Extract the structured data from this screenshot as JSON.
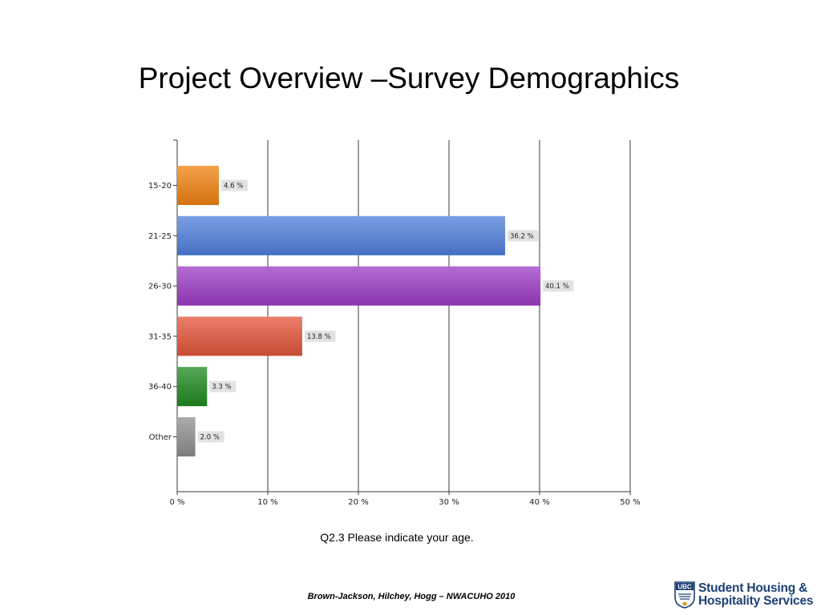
{
  "slide": {
    "title": "Project Overview –Survey Demographics",
    "caption": "Q2.3 Please indicate your age.",
    "footer": "Brown-Jackson, Hilchey, Hogg – NWACUHO 2010"
  },
  "logo": {
    "mark_text": "UBC",
    "line1": "Student Housing &",
    "line2": "Hospitality Services",
    "color": "#1d3f73"
  },
  "chart_data": {
    "type": "bar",
    "orientation": "horizontal",
    "categories": [
      "15-20",
      "21-25",
      "26-30",
      "31-35",
      "36-40",
      "Other"
    ],
    "values": [
      4.6,
      36.2,
      40.1,
      13.8,
      3.3,
      2.0
    ],
    "data_labels": [
      "4.6 %",
      "36.2 %",
      "40.1 %",
      "13.8 %",
      "3.3 %",
      "2.0 %"
    ],
    "colors": [
      "#f0820f",
      "#4f7fdc",
      "#9c3bc6",
      "#e3543a",
      "#1f8a1f",
      "#8f8f8f"
    ],
    "xlim": [
      0,
      50
    ],
    "xticks": [
      0,
      10,
      20,
      30,
      40,
      50
    ],
    "xtick_labels": [
      "0 %",
      "10 %",
      "20 %",
      "30 %",
      "40 %",
      "50 %"
    ],
    "grid": true,
    "legend": "none"
  }
}
